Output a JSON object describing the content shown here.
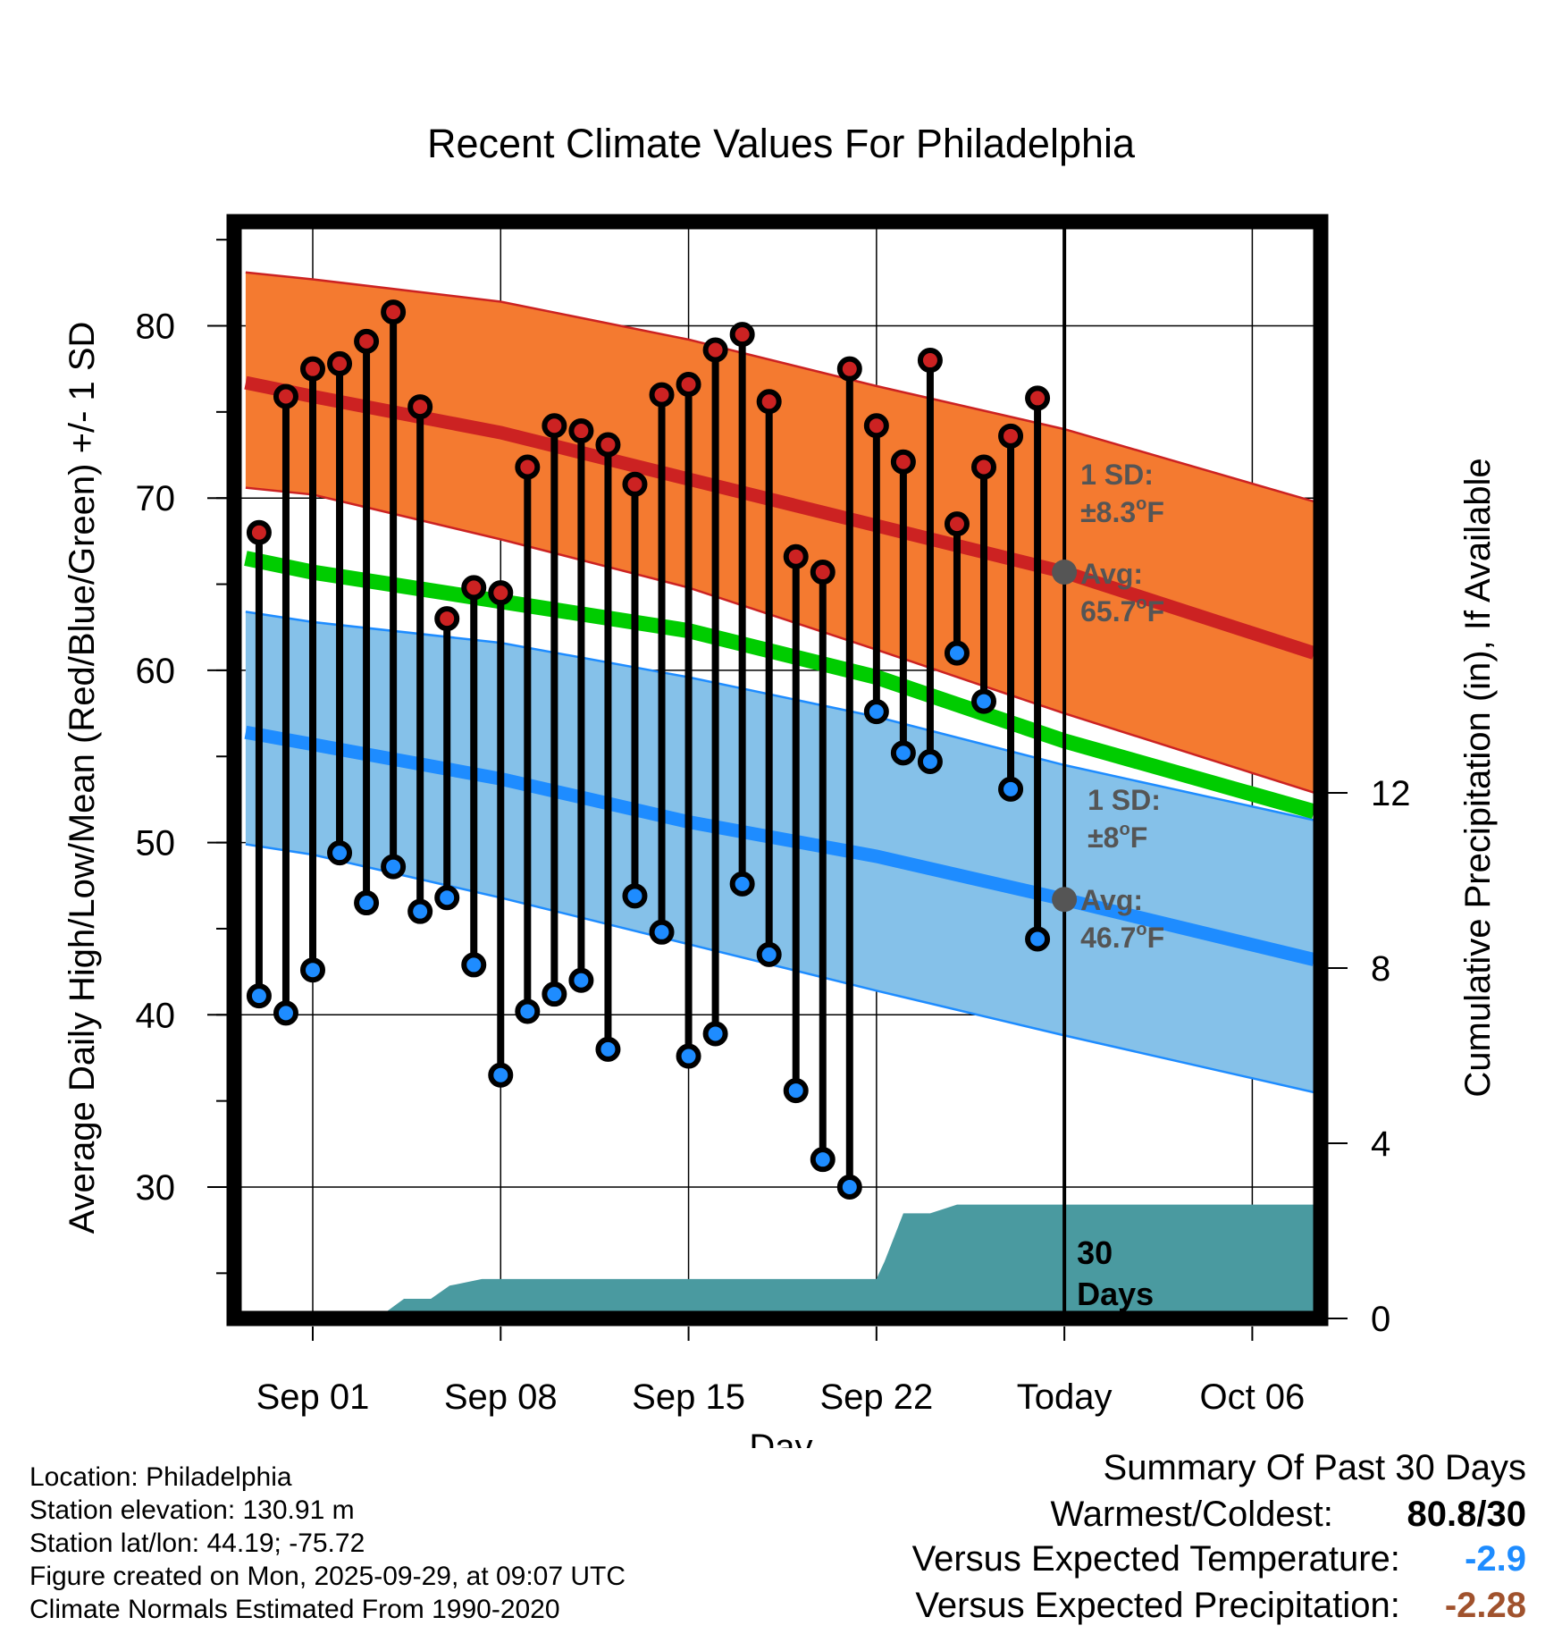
{
  "chart_data": {
    "type": "line",
    "title": "Recent Climate Values For Philadelphia",
    "xlabel": "Day",
    "ylabel": "Average Daily High/Low/Mean (Red/Blue/Green) +/- 1 SD",
    "y2label": "Cumulative Precipitation (in), If Available",
    "x_tick_labels": [
      "Sep 01",
      "Sep 08",
      "Sep 15",
      "Sep 22",
      "Today",
      "Oct 06"
    ],
    "x_tick_days": [
      0,
      7,
      14,
      21,
      28,
      35
    ],
    "x_range": [
      -2.8,
      37.5
    ],
    "y_ticks": [
      30,
      40,
      50,
      60,
      70,
      80
    ],
    "y_range": [
      22.5,
      86.5
    ],
    "y2_ticks": [
      0,
      4,
      8,
      12
    ],
    "y2_range": [
      0,
      30
    ],
    "days": [
      -2,
      -1,
      0,
      1,
      2,
      3,
      4,
      5,
      6,
      7,
      8,
      9,
      10,
      11,
      12,
      13,
      14,
      15,
      16,
      17,
      18,
      19,
      20,
      21,
      22,
      23,
      24,
      25,
      26,
      27
    ],
    "observed_high": [
      68.0,
      75.9,
      77.5,
      77.8,
      79.1,
      80.8,
      75.3,
      63.0,
      64.8,
      64.5,
      71.8,
      74.2,
      73.9,
      73.1,
      70.8,
      76.0,
      76.6,
      78.6,
      79.5,
      75.6,
      66.6,
      65.7,
      77.5,
      74.2,
      72.1,
      78.0,
      68.5,
      71.8,
      73.6,
      75.8
    ],
    "observed_low": [
      41.1,
      40.1,
      42.6,
      49.4,
      46.5,
      48.6,
      46.0,
      46.8,
      42.9,
      36.5,
      40.2,
      41.2,
      42.0,
      38.0,
      46.9,
      44.8,
      37.6,
      38.9,
      47.6,
      43.5,
      35.6,
      31.6,
      30.0,
      57.6,
      55.2,
      54.7,
      61.0,
      58.2,
      53.1,
      44.4
    ],
    "normal_high": {
      "days": [
        -2.5,
        0,
        7,
        14,
        21,
        28,
        37.3
      ],
      "values": [
        76.7,
        75.9,
        73.8,
        71.1,
        68.4,
        65.7,
        61.0
      ]
    },
    "normal_high_upper": {
      "days": [
        -2.5,
        0,
        7,
        14,
        21,
        28,
        37.3
      ],
      "values": [
        83.1,
        82.7,
        81.4,
        79.2,
        76.5,
        74.0,
        69.8
      ]
    },
    "normal_high_lower": {
      "days": [
        -2.5,
        0,
        7,
        14,
        21,
        28,
        37.3
      ],
      "values": [
        70.6,
        70.2,
        67.6,
        64.8,
        61.2,
        57.5,
        52.9
      ]
    },
    "normal_mean": {
      "days": [
        -2.5,
        0,
        7,
        14,
        21,
        28,
        37.3
      ],
      "values": [
        66.5,
        65.7,
        64.0,
        62.3,
        59.6,
        55.9,
        51.8
      ]
    },
    "normal_low": {
      "days": [
        -2.5,
        0,
        7,
        14,
        21,
        28,
        37.3
      ],
      "values": [
        56.4,
        55.7,
        53.7,
        51.2,
        49.2,
        46.7,
        43.2
      ]
    },
    "normal_low_upper": {
      "days": [
        -2.5,
        0,
        7,
        14,
        21,
        28,
        37.3
      ],
      "values": [
        63.4,
        62.8,
        61.6,
        59.6,
        57.3,
        54.5,
        51.3
      ]
    },
    "normal_low_lower": {
      "days": [
        -2.5,
        0,
        7,
        14,
        21,
        28,
        37.3
      ],
      "values": [
        49.9,
        49.3,
        46.8,
        44.1,
        41.4,
        38.8,
        35.5
      ]
    },
    "precipitation": {
      "days": [
        -2.5,
        2.4,
        3.4,
        4.4,
        5.1,
        6.3,
        21.0,
        21.3,
        22.0,
        23.0,
        24.0,
        37.3
      ],
      "values": [
        0,
        0,
        0.45,
        0.45,
        0.75,
        0.9,
        0.9,
        1.3,
        2.4,
        2.4,
        2.6,
        2.6
      ]
    },
    "annotations": {
      "high_sd_label": "1 SD:",
      "high_sd_value": "±8.3",
      "high_sd_unit": "F",
      "high_avg_label": "Avg:",
      "high_avg_value": "65.7",
      "high_avg_unit": "F",
      "low_sd_label": "1 SD:",
      "low_sd_value": "±8",
      "low_sd_unit": "F",
      "low_avg_label": "Avg:",
      "low_avg_value": "46.7",
      "low_avg_unit": "F",
      "degree_mark": "o",
      "days_count": "30",
      "days_word": "Days"
    }
  },
  "colors": {
    "high_band": "#f47a30",
    "high_line": "#cc2222",
    "low_band": "#85c1e9",
    "low_line": "#1e8cff",
    "mean_line": "#00cc00",
    "precip_fill": "#4a9aa0",
    "high_marker": "#cc2222",
    "low_marker": "#1e8cff",
    "warm_value": "#000000",
    "temp_value": "#1e8cff",
    "precip_value": "#a0522d"
  },
  "info": {
    "location": "Location: Philadelphia",
    "elevation": "Station elevation: 130.91 m",
    "latlon": "Station lat/lon: 44.19; -75.72",
    "created": "Figure created on Mon, 2025-09-29, at 09:07 UTC",
    "normals": "Climate Normals Estimated From 1990-2020"
  },
  "summary": {
    "heading": "Summary Of Past 30 Days",
    "warm_cold_label": "Warmest/Coldest:",
    "warm_cold_value": "80.8/30",
    "temp_label": "Versus Expected Temperature:",
    "temp_value": "-2.9",
    "precip_label": "Versus Expected Precipitation:",
    "precip_value": "-2.28"
  }
}
